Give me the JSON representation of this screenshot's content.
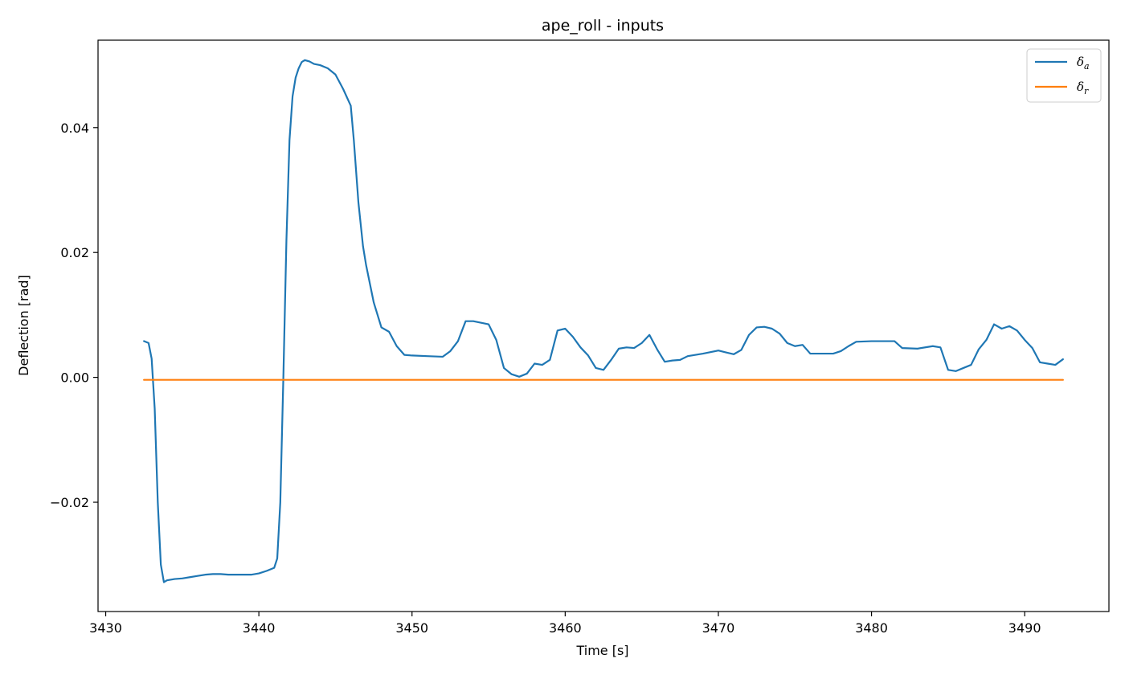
{
  "chart_data": {
    "type": "line",
    "title": "ape_roll - inputs",
    "xlabel": "Time [s]",
    "ylabel": "Deflection [rad]",
    "xlim": [
      3429.5,
      3495.5
    ],
    "ylim": [
      -0.0375,
      0.054
    ],
    "xticks": [
      3430,
      3440,
      3450,
      3460,
      3470,
      3480,
      3490
    ],
    "xtick_labels": [
      "3430",
      "3440",
      "3450",
      "3460",
      "3470",
      "3480",
      "3490"
    ],
    "yticks": [
      -0.02,
      0.0,
      0.02,
      0.04
    ],
    "ytick_labels": [
      "−0.02",
      "0.00",
      "0.02",
      "0.04"
    ],
    "grid": false,
    "legend_position": "top-right",
    "series": [
      {
        "name_base": "δ",
        "name_sub": "a",
        "color": "#1f77b4",
        "x": [
          3432.5,
          3432.8,
          3433.0,
          3433.2,
          3433.4,
          3433.6,
          3433.8,
          3434.0,
          3434.5,
          3435.0,
          3435.5,
          3436.0,
          3436.5,
          3437.0,
          3437.5,
          3438.0,
          3438.5,
          3439.0,
          3439.5,
          3440.0,
          3440.5,
          3441.0,
          3441.2,
          3441.4,
          3441.6,
          3441.8,
          3442.0,
          3442.2,
          3442.4,
          3442.6,
          3442.8,
          3443.0,
          3443.3,
          3443.6,
          3444.0,
          3444.5,
          3445.0,
          3445.5,
          3446.0,
          3446.2,
          3446.5,
          3446.8,
          3447.0,
          3447.5,
          3448.0,
          3448.5,
          3449.0,
          3449.5,
          3450.0,
          3451.0,
          3452.0,
          3452.5,
          3453.0,
          3453.5,
          3454.0,
          3455.0,
          3455.5,
          3456.0,
          3456.5,
          3457.0,
          3457.5,
          3458.0,
          3458.5,
          3459.0,
          3459.5,
          3460.0,
          3460.5,
          3461.0,
          3461.5,
          3462.0,
          3462.5,
          3463.0,
          3463.5,
          3464.0,
          3464.5,
          3465.0,
          3465.5,
          3466.0,
          3466.5,
          3467.0,
          3467.5,
          3468.0,
          3469.0,
          3470.0,
          3470.5,
          3471.0,
          3471.5,
          3472.0,
          3472.5,
          3473.0,
          3473.5,
          3474.0,
          3474.5,
          3475.0,
          3475.5,
          3476.0,
          3477.0,
          3477.5,
          3478.0,
          3478.5,
          3479.0,
          3480.0,
          3481.0,
          3481.5,
          3482.0,
          3483.0,
          3484.0,
          3484.5,
          3485.0,
          3485.5,
          3486.0,
          3486.5,
          3487.0,
          3487.5,
          3488.0,
          3488.5,
          3489.0,
          3489.5,
          3490.0,
          3490.5,
          3491.0,
          3491.5,
          3492.0,
          3492.5
        ],
        "y": [
          0.0058,
          0.0055,
          0.003,
          -0.005,
          -0.02,
          -0.03,
          -0.0328,
          -0.0325,
          -0.0323,
          -0.0322,
          -0.032,
          -0.0318,
          -0.0316,
          -0.0315,
          -0.0315,
          -0.0316,
          -0.0316,
          -0.0316,
          -0.0316,
          -0.0314,
          -0.031,
          -0.0305,
          -0.029,
          -0.02,
          0.0,
          0.022,
          0.038,
          0.045,
          0.048,
          0.0495,
          0.0505,
          0.0508,
          0.0506,
          0.0502,
          0.05,
          0.0495,
          0.0485,
          0.0462,
          0.0435,
          0.038,
          0.028,
          0.021,
          0.018,
          0.012,
          0.008,
          0.0073,
          0.005,
          0.0036,
          0.0035,
          0.0034,
          0.0033,
          0.0042,
          0.0058,
          0.009,
          0.009,
          0.0085,
          0.006,
          0.0015,
          0.0005,
          0.0001,
          0.0006,
          0.0022,
          0.002,
          0.0028,
          0.0075,
          0.0078,
          0.0065,
          0.0048,
          0.0035,
          0.0015,
          0.0012,
          0.0028,
          0.0046,
          0.0048,
          0.0047,
          0.0055,
          0.0068,
          0.0045,
          0.0025,
          0.0027,
          0.0028,
          0.0034,
          0.0038,
          0.0043,
          0.004,
          0.0037,
          0.0044,
          0.0068,
          0.008,
          0.0081,
          0.0078,
          0.007,
          0.0055,
          0.005,
          0.0052,
          0.0038,
          0.0038,
          0.0038,
          0.0042,
          0.005,
          0.0057,
          0.0058,
          0.0058,
          0.0058,
          0.0047,
          0.0046,
          0.005,
          0.0048,
          0.0012,
          0.001,
          0.0015,
          0.002,
          0.0045,
          0.006,
          0.0085,
          0.0078,
          0.0082,
          0.0075,
          0.006,
          0.0047,
          0.0024,
          0.0022,
          0.002,
          0.0029
        ]
      },
      {
        "name_base": "δ",
        "name_sub": "r",
        "color": "#ff7f0e",
        "x": [
          3432.5,
          3492.5
        ],
        "y": [
          -0.0004,
          -0.0004
        ]
      }
    ]
  }
}
